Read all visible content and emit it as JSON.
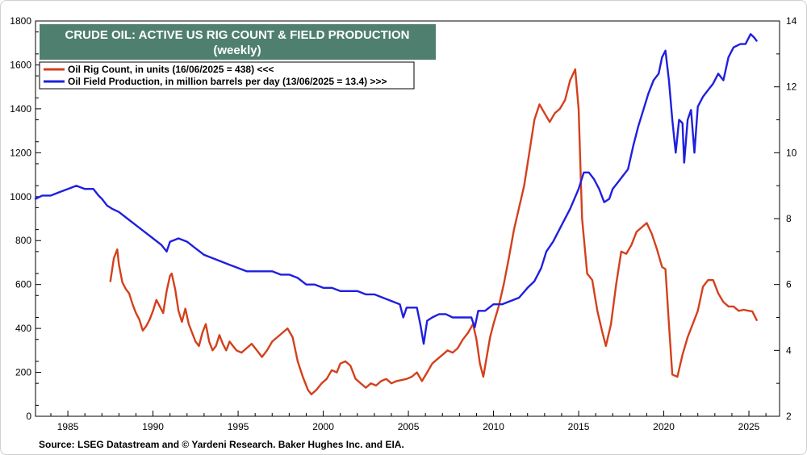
{
  "chart_data": {
    "type": "line",
    "title": "CRUDE OIL: ACTIVE US RIG COUNT & FIELD PRODUCTION",
    "subtitle": "(weekly)",
    "source": "Source: LSEG Datastream and © Yardeni Research. Baker Hughes Inc. and EIA.",
    "xlim": [
      1983.1,
      2026.8
    ],
    "x_ticks": [
      1985,
      1990,
      1995,
      2000,
      2005,
      2010,
      2015,
      2020,
      2025
    ],
    "y_left": {
      "lim": [
        0,
        1800
      ],
      "ticks": [
        0,
        200,
        400,
        600,
        800,
        1000,
        1200,
        1400,
        1600,
        1800
      ]
    },
    "y_right": {
      "lim": [
        2,
        14
      ],
      "ticks": [
        2,
        4,
        6,
        8,
        10,
        12,
        14
      ]
    },
    "grid": false,
    "legend_position": "top-left",
    "series": [
      {
        "name": "Oil Rig Count, in units (16/06/2025 = 438) <<<",
        "axis": "left",
        "color": "#d4401c",
        "points": [
          [
            1987.5,
            615
          ],
          [
            1987.7,
            720
          ],
          [
            1987.9,
            760
          ],
          [
            1988.0,
            690
          ],
          [
            1988.2,
            610
          ],
          [
            1988.4,
            580
          ],
          [
            1988.6,
            560
          ],
          [
            1988.8,
            510
          ],
          [
            1989.0,
            470
          ],
          [
            1989.2,
            440
          ],
          [
            1989.4,
            390
          ],
          [
            1989.6,
            410
          ],
          [
            1989.8,
            440
          ],
          [
            1990.0,
            480
          ],
          [
            1990.2,
            530
          ],
          [
            1990.4,
            500
          ],
          [
            1990.6,
            470
          ],
          [
            1990.8,
            570
          ],
          [
            1991.0,
            640
          ],
          [
            1991.1,
            650
          ],
          [
            1991.3,
            580
          ],
          [
            1991.5,
            480
          ],
          [
            1991.7,
            430
          ],
          [
            1991.9,
            490
          ],
          [
            1992.1,
            420
          ],
          [
            1992.3,
            380
          ],
          [
            1992.5,
            340
          ],
          [
            1992.7,
            320
          ],
          [
            1992.9,
            380
          ],
          [
            1993.1,
            420
          ],
          [
            1993.3,
            340
          ],
          [
            1993.5,
            300
          ],
          [
            1993.7,
            320
          ],
          [
            1993.9,
            370
          ],
          [
            1994.1,
            330
          ],
          [
            1994.3,
            300
          ],
          [
            1994.5,
            340
          ],
          [
            1994.7,
            320
          ],
          [
            1994.9,
            300
          ],
          [
            1995.2,
            290
          ],
          [
            1995.5,
            310
          ],
          [
            1995.8,
            330
          ],
          [
            1996.1,
            300
          ],
          [
            1996.4,
            270
          ],
          [
            1996.7,
            300
          ],
          [
            1997.0,
            340
          ],
          [
            1997.3,
            360
          ],
          [
            1997.6,
            380
          ],
          [
            1997.9,
            400
          ],
          [
            1998.2,
            360
          ],
          [
            1998.5,
            250
          ],
          [
            1998.8,
            180
          ],
          [
            1999.1,
            120
          ],
          [
            1999.3,
            100
          ],
          [
            1999.6,
            120
          ],
          [
            1999.9,
            150
          ],
          [
            2000.2,
            170
          ],
          [
            2000.5,
            210
          ],
          [
            2000.8,
            200
          ],
          [
            2001.0,
            240
          ],
          [
            2001.3,
            250
          ],
          [
            2001.6,
            230
          ],
          [
            2001.9,
            170
          ],
          [
            2002.2,
            150
          ],
          [
            2002.5,
            130
          ],
          [
            2002.8,
            150
          ],
          [
            2003.1,
            140
          ],
          [
            2003.4,
            160
          ],
          [
            2003.7,
            170
          ],
          [
            2004.0,
            150
          ],
          [
            2004.3,
            160
          ],
          [
            2004.6,
            165
          ],
          [
            2004.9,
            170
          ],
          [
            2005.2,
            180
          ],
          [
            2005.5,
            200
          ],
          [
            2005.8,
            160
          ],
          [
            2006.1,
            200
          ],
          [
            2006.4,
            240
          ],
          [
            2006.7,
            260
          ],
          [
            2007.0,
            280
          ],
          [
            2007.3,
            300
          ],
          [
            2007.6,
            290
          ],
          [
            2007.9,
            310
          ],
          [
            2008.2,
            350
          ],
          [
            2008.5,
            380
          ],
          [
            2008.8,
            420
          ],
          [
            2009.0,
            350
          ],
          [
            2009.2,
            240
          ],
          [
            2009.4,
            180
          ],
          [
            2009.6,
            270
          ],
          [
            2009.8,
            360
          ],
          [
            2010.0,
            420
          ],
          [
            2010.3,
            500
          ],
          [
            2010.6,
            600
          ],
          [
            2010.9,
            720
          ],
          [
            2011.2,
            850
          ],
          [
            2011.5,
            950
          ],
          [
            2011.8,
            1050
          ],
          [
            2012.1,
            1200
          ],
          [
            2012.4,
            1350
          ],
          [
            2012.7,
            1420
          ],
          [
            2013.0,
            1380
          ],
          [
            2013.3,
            1340
          ],
          [
            2013.6,
            1380
          ],
          [
            2013.9,
            1400
          ],
          [
            2014.2,
            1440
          ],
          [
            2014.5,
            1530
          ],
          [
            2014.8,
            1580
          ],
          [
            2015.0,
            1400
          ],
          [
            2015.2,
            900
          ],
          [
            2015.5,
            650
          ],
          [
            2015.8,
            620
          ],
          [
            2016.1,
            480
          ],
          [
            2016.4,
            380
          ],
          [
            2016.6,
            320
          ],
          [
            2016.9,
            420
          ],
          [
            2017.2,
            600
          ],
          [
            2017.5,
            750
          ],
          [
            2017.8,
            740
          ],
          [
            2018.1,
            780
          ],
          [
            2018.4,
            840
          ],
          [
            2018.7,
            860
          ],
          [
            2019.0,
            880
          ],
          [
            2019.3,
            830
          ],
          [
            2019.6,
            760
          ],
          [
            2019.9,
            680
          ],
          [
            2020.1,
            670
          ],
          [
            2020.3,
            420
          ],
          [
            2020.5,
            190
          ],
          [
            2020.8,
            180
          ],
          [
            2021.1,
            280
          ],
          [
            2021.4,
            360
          ],
          [
            2021.7,
            420
          ],
          [
            2022.0,
            480
          ],
          [
            2022.3,
            590
          ],
          [
            2022.6,
            620
          ],
          [
            2022.9,
            620
          ],
          [
            2023.2,
            560
          ],
          [
            2023.5,
            520
          ],
          [
            2023.8,
            500
          ],
          [
            2024.1,
            500
          ],
          [
            2024.4,
            480
          ],
          [
            2024.7,
            485
          ],
          [
            2025.0,
            480
          ],
          [
            2025.2,
            478
          ],
          [
            2025.46,
            438
          ]
        ]
      },
      {
        "name": "Oil Field Production, in million barrels per day (13/06/2025 = 13.4) >>>",
        "axis": "right",
        "color": "#1f1fe0",
        "points": [
          [
            1983.1,
            8.6
          ],
          [
            1983.5,
            8.7
          ],
          [
            1984.0,
            8.7
          ],
          [
            1984.5,
            8.8
          ],
          [
            1985.0,
            8.9
          ],
          [
            1985.5,
            9.0
          ],
          [
            1986.0,
            8.9
          ],
          [
            1986.5,
            8.9
          ],
          [
            1986.8,
            8.7
          ],
          [
            1987.0,
            8.6
          ],
          [
            1987.3,
            8.4
          ],
          [
            1987.6,
            8.3
          ],
          [
            1988.0,
            8.2
          ],
          [
            1988.5,
            8.0
          ],
          [
            1989.0,
            7.8
          ],
          [
            1989.5,
            7.6
          ],
          [
            1990.0,
            7.4
          ],
          [
            1990.5,
            7.2
          ],
          [
            1990.8,
            7.0
          ],
          [
            1991.0,
            7.3
          ],
          [
            1991.5,
            7.4
          ],
          [
            1992.0,
            7.3
          ],
          [
            1992.5,
            7.1
          ],
          [
            1993.0,
            6.9
          ],
          [
            1993.5,
            6.8
          ],
          [
            1994.0,
            6.7
          ],
          [
            1994.5,
            6.6
          ],
          [
            1995.0,
            6.5
          ],
          [
            1995.5,
            6.4
          ],
          [
            1996.0,
            6.4
          ],
          [
            1996.5,
            6.4
          ],
          [
            1997.0,
            6.4
          ],
          [
            1997.5,
            6.3
          ],
          [
            1998.0,
            6.3
          ],
          [
            1998.5,
            6.2
          ],
          [
            1999.0,
            6.0
          ],
          [
            1999.5,
            6.0
          ],
          [
            2000.0,
            5.9
          ],
          [
            2000.5,
            5.9
          ],
          [
            2001.0,
            5.8
          ],
          [
            2001.5,
            5.8
          ],
          [
            2002.0,
            5.8
          ],
          [
            2002.5,
            5.7
          ],
          [
            2003.0,
            5.7
          ],
          [
            2003.5,
            5.6
          ],
          [
            2004.0,
            5.5
          ],
          [
            2004.5,
            5.4
          ],
          [
            2004.7,
            5.0
          ],
          [
            2004.9,
            5.3
          ],
          [
            2005.2,
            5.3
          ],
          [
            2005.5,
            5.3
          ],
          [
            2005.7,
            4.8
          ],
          [
            2005.9,
            4.2
          ],
          [
            2006.1,
            4.9
          ],
          [
            2006.4,
            5.0
          ],
          [
            2006.8,
            5.1
          ],
          [
            2007.2,
            5.1
          ],
          [
            2007.6,
            5.0
          ],
          [
            2008.0,
            5.0
          ],
          [
            2008.4,
            5.0
          ],
          [
            2008.7,
            5.0
          ],
          [
            2008.9,
            4.7
          ],
          [
            2009.1,
            5.2
          ],
          [
            2009.5,
            5.2
          ],
          [
            2010.0,
            5.4
          ],
          [
            2010.5,
            5.4
          ],
          [
            2011.0,
            5.5
          ],
          [
            2011.5,
            5.6
          ],
          [
            2012.0,
            5.9
          ],
          [
            2012.4,
            6.1
          ],
          [
            2012.8,
            6.5
          ],
          [
            2013.1,
            7.0
          ],
          [
            2013.5,
            7.3
          ],
          [
            2014.0,
            7.8
          ],
          [
            2014.5,
            8.3
          ],
          [
            2015.0,
            8.9
          ],
          [
            2015.3,
            9.4
          ],
          [
            2015.6,
            9.4
          ],
          [
            2015.9,
            9.2
          ],
          [
            2016.2,
            8.9
          ],
          [
            2016.5,
            8.5
          ],
          [
            2016.8,
            8.6
          ],
          [
            2017.0,
            8.9
          ],
          [
            2017.3,
            9.1
          ],
          [
            2017.6,
            9.3
          ],
          [
            2017.9,
            9.5
          ],
          [
            2018.2,
            10.2
          ],
          [
            2018.5,
            10.8
          ],
          [
            2018.8,
            11.3
          ],
          [
            2019.1,
            11.8
          ],
          [
            2019.4,
            12.2
          ],
          [
            2019.7,
            12.4
          ],
          [
            2019.9,
            12.9
          ],
          [
            2020.1,
            13.1
          ],
          [
            2020.3,
            12.2
          ],
          [
            2020.5,
            11.0
          ],
          [
            2020.7,
            10.0
          ],
          [
            2020.9,
            11.0
          ],
          [
            2021.1,
            10.9
          ],
          [
            2021.2,
            9.7
          ],
          [
            2021.4,
            11.0
          ],
          [
            2021.6,
            11.3
          ],
          [
            2021.8,
            10.0
          ],
          [
            2022.0,
            11.4
          ],
          [
            2022.3,
            11.7
          ],
          [
            2022.6,
            11.9
          ],
          [
            2022.9,
            12.1
          ],
          [
            2023.2,
            12.4
          ],
          [
            2023.5,
            12.2
          ],
          [
            2023.8,
            12.9
          ],
          [
            2024.1,
            13.2
          ],
          [
            2024.5,
            13.3
          ],
          [
            2024.8,
            13.3
          ],
          [
            2025.1,
            13.6
          ],
          [
            2025.3,
            13.5
          ],
          [
            2025.45,
            13.4
          ]
        ]
      }
    ]
  }
}
